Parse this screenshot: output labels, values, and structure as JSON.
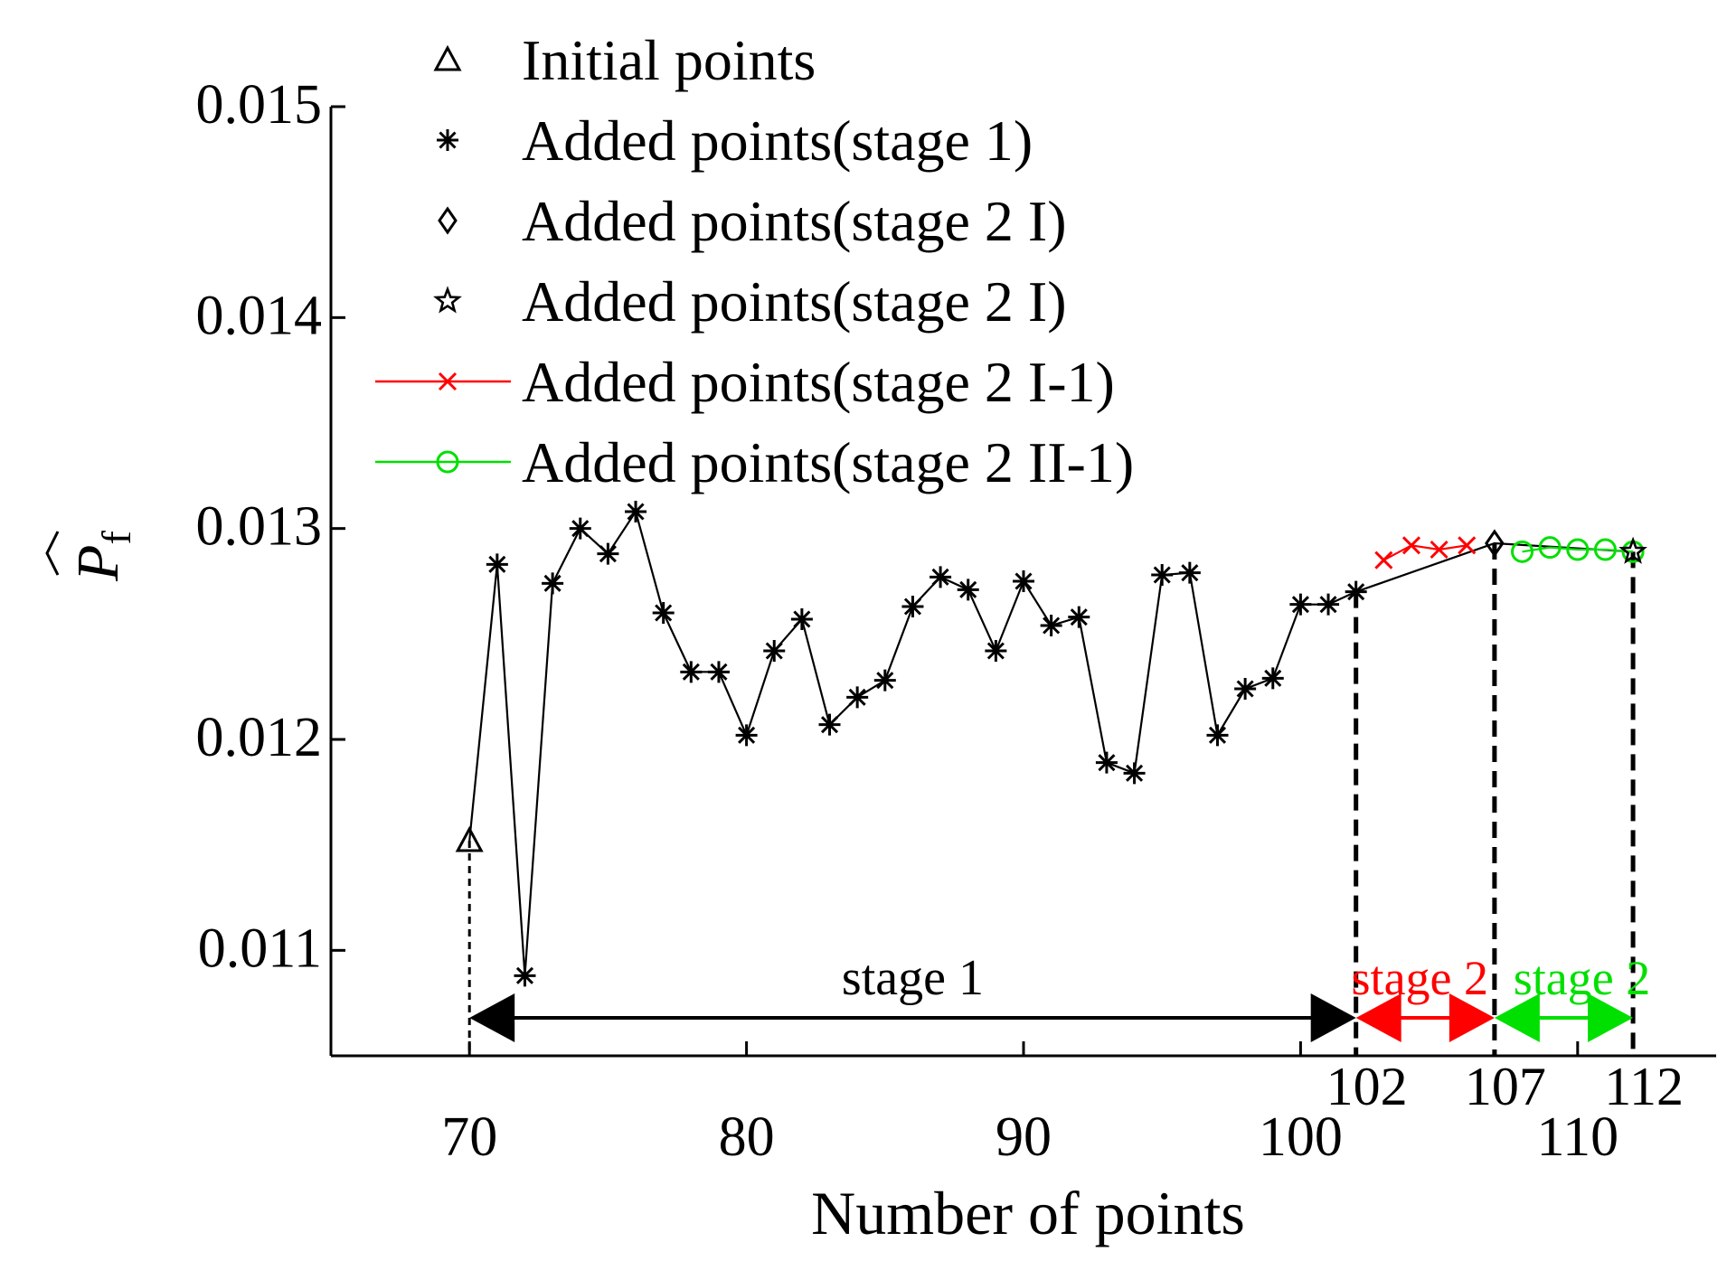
{
  "chart_data": {
    "type": "line",
    "title": "",
    "xlabel": "Number of points",
    "ylabel_symbol": "P",
    "ylabel_subscript": "f",
    "xlim": [
      65,
      115
    ],
    "ylim": [
      0.0105,
      0.015
    ],
    "x_ticks": [
      70,
      80,
      90,
      100,
      110
    ],
    "x_tick_labels": [
      "70",
      "80",
      "90",
      "100",
      "110"
    ],
    "y_ticks": [
      0.011,
      0.012,
      0.013,
      0.014,
      0.015
    ],
    "y_tick_labels": [
      "0.011",
      "0.012",
      "0.013",
      "0.014",
      "0.015"
    ],
    "grid": false,
    "legend_position": "top-left",
    "colors": {
      "black": "#000000",
      "red": "#ff0000",
      "green": "#00e000"
    },
    "series": [
      {
        "name": "Initial points",
        "marker": "triangle",
        "color": "#000000",
        "x": [
          70
        ],
        "y": [
          0.01152
        ]
      },
      {
        "name": "Added points(stage 1)",
        "marker": "asterisk",
        "color": "#000000",
        "x": [
          71,
          72,
          73,
          74,
          75,
          76,
          77,
          78,
          79,
          80,
          81,
          82,
          83,
          84,
          85,
          86,
          87,
          88,
          89,
          90,
          91,
          92,
          93,
          94,
          95,
          96,
          97,
          98,
          99,
          100,
          101,
          102
        ],
        "y": [
          0.01283,
          0.01088,
          0.01274,
          0.013,
          0.01288,
          0.01308,
          0.0126,
          0.01232,
          0.01232,
          0.01202,
          0.01242,
          0.01257,
          0.01207,
          0.0122,
          0.01228,
          0.01263,
          0.01277,
          0.01271,
          0.01242,
          0.01275,
          0.01254,
          0.01258,
          0.01189,
          0.01184,
          0.01278,
          0.01279,
          0.01202,
          0.01224,
          0.01229,
          0.01264,
          0.01264,
          0.0127
        ]
      },
      {
        "name": "Added points(stage 2 I)",
        "marker": "diamond",
        "color": "#000000",
        "x": [
          107
        ],
        "y": [
          0.01293
        ]
      },
      {
        "name": "Added points(stage 2 I)",
        "marker": "star",
        "color": "#000000",
        "x": [
          112
        ],
        "y": [
          0.01289
        ]
      },
      {
        "name": "Added points(stage 2 I-1)",
        "marker": "x",
        "color": "#ff0000",
        "x": [
          103,
          104,
          105,
          106
        ],
        "y": [
          0.01285,
          0.01292,
          0.0129,
          0.01292
        ]
      },
      {
        "name": "Added points(stage 2 II-1)",
        "marker": "circle",
        "color": "#00e000",
        "x": [
          108,
          109,
          110,
          111,
          112
        ],
        "y": [
          0.01289,
          0.01291,
          0.0129,
          0.0129,
          0.01289
        ]
      }
    ],
    "dashed_markers": [
      {
        "x": 70,
        "y_top": 0.01152,
        "label": ""
      },
      {
        "x": 102,
        "y_top": 0.0127,
        "label": "102"
      },
      {
        "x": 107,
        "y_top": 0.01293,
        "label": "107"
      },
      {
        "x": 112,
        "y_top": 0.01289,
        "label": "112"
      }
    ],
    "annotations": [
      {
        "text": "stage 1",
        "x_from": 70,
        "x_to": 102,
        "y": 0.01068,
        "color": "#000000"
      },
      {
        "text": "stage 2",
        "x_from": 102,
        "x_to": 107,
        "y": 0.01068,
        "color": "#ff0000"
      },
      {
        "text": "stage 2",
        "x_from": 107,
        "x_to": 112,
        "y": 0.01068,
        "color": "#00e000"
      }
    ]
  }
}
